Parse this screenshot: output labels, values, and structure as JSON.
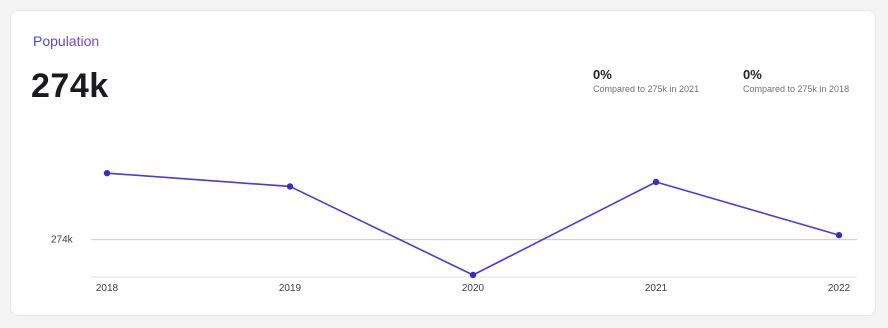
{
  "card": {
    "title": "Population",
    "value": "274k"
  },
  "comparisons": [
    {
      "percent": "0%",
      "description": "Compared to 275k in 2021"
    },
    {
      "percent": "0%",
      "description": "Compared to 275k in 2018"
    }
  ],
  "colors": {
    "line": "#4a3ad6",
    "point": "#3a2bc4",
    "reference_line": "#c9c9cf",
    "baseline": "#e2e2e6"
  },
  "chart_data": {
    "type": "line",
    "categories": [
      "2018",
      "2019",
      "2020",
      "2021",
      "2022"
    ],
    "series": [
      {
        "values": [
          275.5,
          275.2,
          273.2,
          275.3,
          274.1
        ]
      }
    ],
    "reference_line": {
      "value": 274,
      "label": "274k"
    },
    "ylim": [
      273.2,
      276.0
    ],
    "grid": false,
    "legend": "none"
  }
}
